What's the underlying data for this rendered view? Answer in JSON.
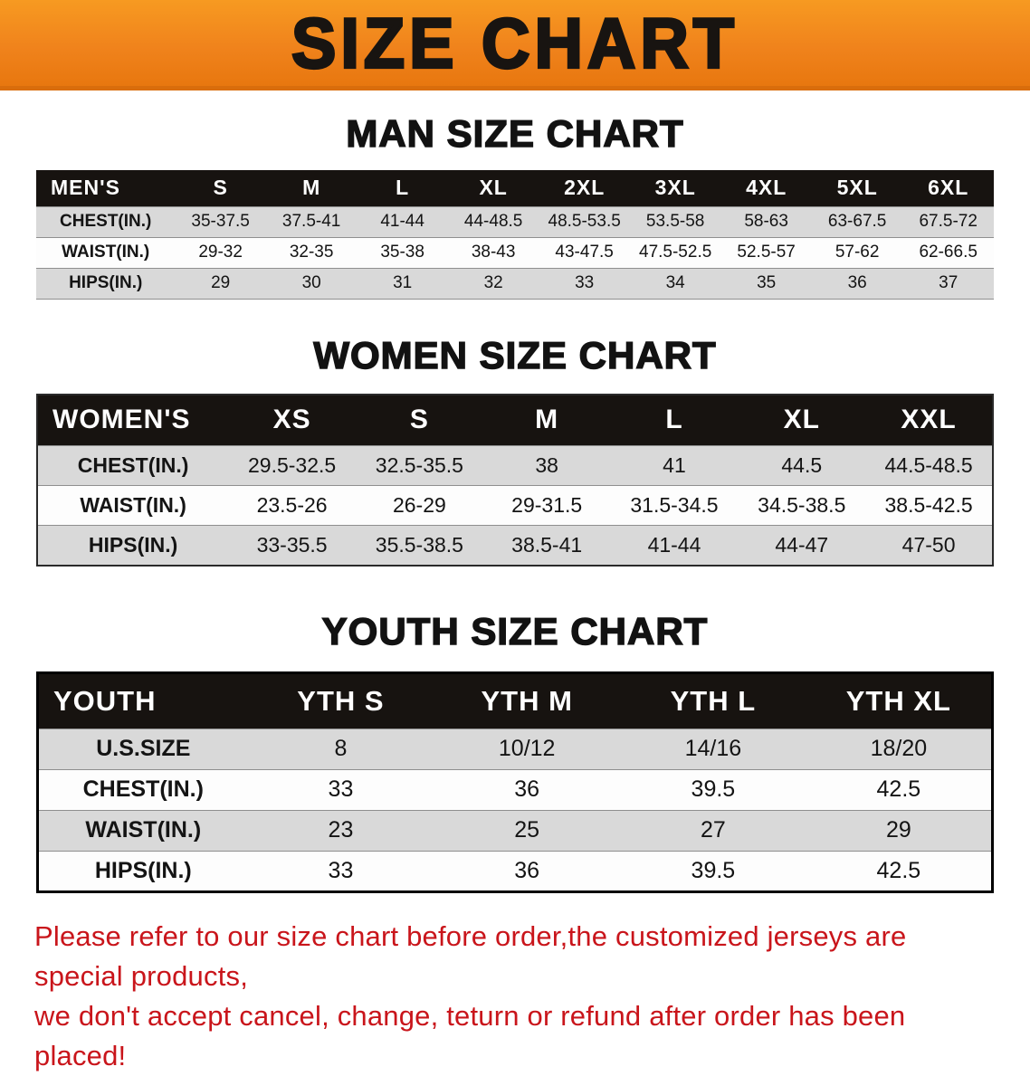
{
  "banner": {
    "title": "SIZE CHART",
    "bg_color": "#F0831C",
    "text_color": "#181411"
  },
  "chart_data": [
    {
      "type": "table",
      "title": "MAN SIZE CHART",
      "columns": [
        "MEN'S",
        "S",
        "M",
        "L",
        "XL",
        "2XL",
        "3XL",
        "4XL",
        "5XL",
        "6XL"
      ],
      "rows": [
        [
          "CHEST(IN.)",
          "35-37.5",
          "37.5-41",
          "41-44",
          "44-48.5",
          "48.5-53.5",
          "53.5-58",
          "58-63",
          "63-67.5",
          "67.5-72"
        ],
        [
          "WAIST(IN.)",
          "29-32",
          "32-35",
          "35-38",
          "38-43",
          "43-47.5",
          "47.5-52.5",
          "52.5-57",
          "57-62",
          "62-66.5"
        ],
        [
          "HIPS(IN.)",
          "29",
          "30",
          "31",
          "32",
          "33",
          "34",
          "35",
          "36",
          "37"
        ]
      ]
    },
    {
      "type": "table",
      "title": "WOMEN SIZE CHART",
      "columns": [
        "WOMEN'S",
        "XS",
        "S",
        "M",
        "L",
        "XL",
        "XXL"
      ],
      "rows": [
        [
          "CHEST(IN.)",
          "29.5-32.5",
          "32.5-35.5",
          "38",
          "41",
          "44.5",
          "44.5-48.5"
        ],
        [
          "WAIST(IN.)",
          "23.5-26",
          "26-29",
          "29-31.5",
          "31.5-34.5",
          "34.5-38.5",
          "38.5-42.5"
        ],
        [
          "HIPS(IN.)",
          "33-35.5",
          "35.5-38.5",
          "38.5-41",
          "41-44",
          "44-47",
          "47-50"
        ]
      ]
    },
    {
      "type": "table",
      "title": "YOUTH SIZE CHART",
      "columns": [
        "YOUTH",
        "YTH S",
        "YTH M",
        "YTH L",
        "YTH XL"
      ],
      "rows": [
        [
          "U.S.SIZE",
          "8",
          "10/12",
          "14/16",
          "18/20"
        ],
        [
          "CHEST(IN.)",
          "33",
          "36",
          "39.5",
          "42.5"
        ],
        [
          "WAIST(IN.)",
          "23",
          "25",
          "27",
          "29"
        ],
        [
          "HIPS(IN.)",
          "33",
          "36",
          "39.5",
          "42.5"
        ]
      ]
    }
  ],
  "footer": {
    "line1": "Please refer to our size chart before order,the customized jerseys are special products,",
    "line2": "we don't accept cancel, change, teturn or refund after order has been placed!",
    "text_color": "#C9151B"
  }
}
